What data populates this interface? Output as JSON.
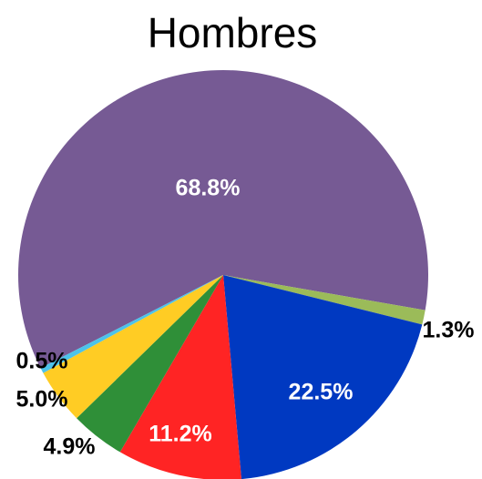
{
  "chart_data": {
    "type": "pie",
    "title": "Hombres",
    "categories": [
      null,
      null,
      null,
      null,
      null,
      null,
      null
    ],
    "values": [
      68.8,
      1.3,
      22.5,
      11.2,
      4.9,
      5.0,
      0.5
    ],
    "value_labels": [
      "68.8%",
      "1.3%",
      "22.5%",
      "11.2%",
      "4.9%",
      "5.0%",
      "0.5%"
    ],
    "colors": [
      "#765a94",
      "#9bbb59",
      "#0039c1",
      "#ff2424",
      "#2f8f38",
      "#ffcc24",
      "#4cc3ea"
    ]
  }
}
